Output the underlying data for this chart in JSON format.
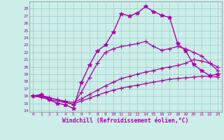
{
  "bg_color": "#cceee8",
  "line_color": "#aa00aa",
  "grid_color": "#99cccc",
  "xlabel": "Windchill (Refroidissement éolien,°C)",
  "ylabel_ticks": [
    14,
    15,
    16,
    17,
    18,
    19,
    20,
    21,
    22,
    23,
    24,
    25,
    26,
    27,
    28
  ],
  "xlim": [
    -0.5,
    23.5
  ],
  "ylim": [
    13.8,
    29.0
  ],
  "xticks": [
    0,
    1,
    2,
    3,
    4,
    5,
    6,
    7,
    8,
    9,
    10,
    11,
    12,
    13,
    14,
    15,
    16,
    17,
    18,
    19,
    20,
    21,
    22,
    23
  ],
  "series": [
    {
      "x": [
        0,
        1,
        2,
        3,
        4,
        5,
        6,
        7,
        8,
        9,
        10,
        11,
        12,
        13,
        14,
        15,
        16,
        17,
        18,
        19,
        20,
        21,
        22,
        23
      ],
      "y": [
        16.0,
        16.2,
        15.5,
        15.0,
        14.8,
        14.3,
        17.8,
        20.2,
        22.2,
        23.0,
        24.8,
        27.3,
        27.0,
        27.4,
        28.3,
        27.6,
        27.1,
        26.8,
        23.2,
        22.2,
        20.3,
        19.5,
        18.8,
        19.0
      ],
      "marker": "*",
      "markersize": 4,
      "linewidth": 1.0
    },
    {
      "x": [
        0,
        1,
        2,
        3,
        4,
        5,
        6,
        7,
        8,
        9,
        10,
        11,
        12,
        13,
        14,
        15,
        16,
        17,
        18,
        19,
        20,
        21,
        22,
        23
      ],
      "y": [
        16.0,
        15.8,
        15.5,
        15.3,
        15.1,
        14.9,
        15.3,
        15.7,
        16.1,
        16.5,
        16.8,
        17.1,
        17.3,
        17.5,
        17.7,
        17.9,
        18.1,
        18.3,
        18.4,
        18.5,
        18.6,
        18.7,
        18.7,
        18.6
      ],
      "marker": "+",
      "markersize": 4,
      "linewidth": 0.9
    },
    {
      "x": [
        0,
        1,
        2,
        3,
        4,
        5,
        6,
        7,
        8,
        9,
        10,
        11,
        12,
        13,
        14,
        15,
        16,
        17,
        18,
        19,
        20,
        21,
        22,
        23
      ],
      "y": [
        16.0,
        15.9,
        15.7,
        15.5,
        15.3,
        15.1,
        15.6,
        16.2,
        16.8,
        17.4,
        17.9,
        18.4,
        18.7,
        19.0,
        19.3,
        19.5,
        19.8,
        20.0,
        20.2,
        20.5,
        21.0,
        20.8,
        20.5,
        20.0
      ],
      "marker": "+",
      "markersize": 4,
      "linewidth": 0.9
    },
    {
      "x": [
        0,
        1,
        2,
        3,
        4,
        5,
        6,
        7,
        8,
        9,
        10,
        11,
        12,
        13,
        14,
        15,
        16,
        17,
        18,
        19,
        20,
        21,
        22,
        23
      ],
      "y": [
        16.0,
        16.1,
        15.8,
        15.5,
        15.2,
        14.8,
        16.5,
        18.5,
        20.5,
        22.0,
        22.5,
        22.8,
        23.0,
        23.2,
        23.5,
        22.8,
        22.3,
        22.5,
        22.8,
        22.5,
        22.0,
        21.5,
        20.5,
        19.5
      ],
      "marker": "+",
      "markersize": 4,
      "linewidth": 0.9
    }
  ]
}
